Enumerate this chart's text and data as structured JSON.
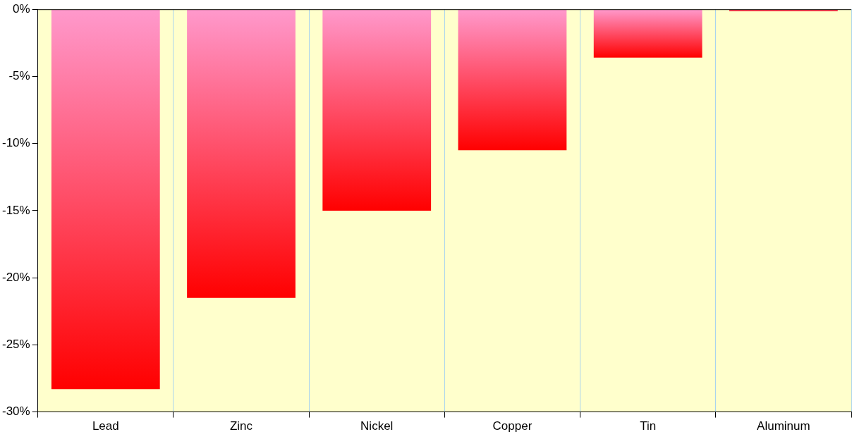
{
  "chart_data": {
    "type": "bar",
    "categories": [
      "Lead",
      "Zinc",
      "Nickel",
      "Copper",
      "Tin",
      "Aluminum"
    ],
    "values": [
      -28.3,
      -21.5,
      -15.0,
      -10.5,
      -3.6,
      -0.15
    ],
    "color": "#ff0000",
    "ylim": [
      -30,
      0
    ],
    "yticks": [
      {
        "value": -30,
        "label": "-30%"
      },
      {
        "value": -25,
        "label": "-25%"
      },
      {
        "value": -20,
        "label": "-20%"
      },
      {
        "value": -15,
        "label": "-15%"
      },
      {
        "value": -10,
        "label": "-10%"
      },
      {
        "value": -5,
        "label": "-5%"
      },
      {
        "value": 0,
        "label": "0%"
      }
    ],
    "grid": "x",
    "legend": false
  }
}
